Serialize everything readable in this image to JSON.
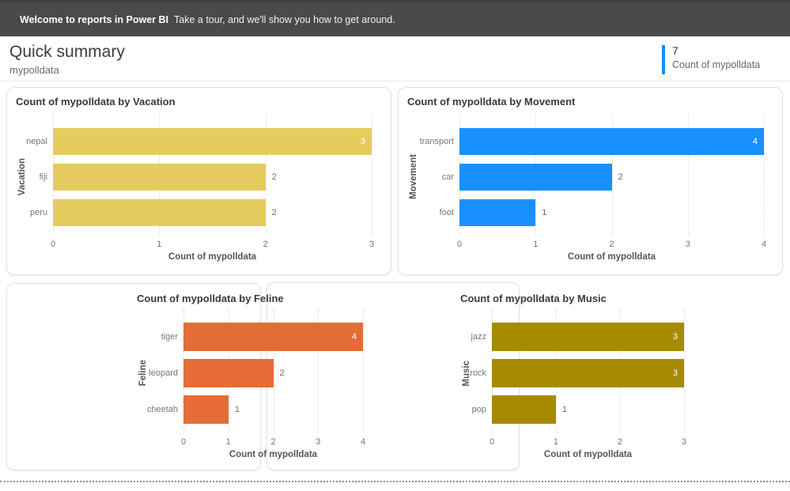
{
  "banner": {
    "title": "Welcome to reports in Power BI",
    "subtitle": "Take a tour, and we'll show you how to get around."
  },
  "header": {
    "title": "Quick summary",
    "subtitle": "mypolldata",
    "kpi_value": "7",
    "kpi_label": "Count of mypolldata",
    "accent_color": "#118DFF"
  },
  "chart_data": [
    {
      "type": "bar",
      "orientation": "horizontal",
      "title": "Count of mypolldata by Vacation",
      "categories": [
        "nepal",
        "fiji",
        "peru"
      ],
      "values": [
        3,
        2,
        2
      ],
      "xlabel": "Count of mypolldata",
      "ylabel": "Vacation",
      "xlim": [
        0,
        3
      ],
      "ticks": [
        0,
        1,
        2,
        3
      ],
      "color": "#E6CB5F",
      "grid": "dotted-vertical",
      "value_labels": "end-of-bar"
    },
    {
      "type": "bar",
      "orientation": "horizontal",
      "title": "Count of mypolldata by Movement",
      "categories": [
        "transport",
        "car",
        "foot"
      ],
      "values": [
        4,
        2,
        1
      ],
      "xlabel": "Count of mypolldata",
      "ylabel": "Movement",
      "xlim": [
        0,
        4
      ],
      "ticks": [
        0,
        1,
        2,
        3,
        4
      ],
      "color": "#1891FF",
      "grid": "dotted-vertical",
      "value_labels": "end-of-bar"
    },
    {
      "type": "bar",
      "orientation": "horizontal",
      "title": "Count of mypolldata by Feline",
      "categories": [
        "tiger",
        "leopard",
        "cheetah"
      ],
      "values": [
        4,
        2,
        1
      ],
      "xlabel": "Count of mypolldata",
      "ylabel": "Feline",
      "xlim": [
        0,
        4
      ],
      "ticks": [
        0,
        1,
        2,
        3,
        4
      ],
      "color": "#E66C37",
      "grid": "dotted-vertical",
      "value_labels": "end-of-bar"
    },
    {
      "type": "bar",
      "orientation": "horizontal",
      "title": "Count of mypolldata by Music",
      "categories": [
        "jazz",
        "rock",
        "pop"
      ],
      "values": [
        3,
        3,
        1
      ],
      "xlabel": "Count of mypolldata",
      "ylabel": "Music",
      "xlim": [
        0,
        3
      ],
      "ticks": [
        0,
        1,
        2,
        3
      ],
      "color": "#A68B00",
      "grid": "dotted-vertical",
      "value_labels": "end-of-bar"
    }
  ]
}
